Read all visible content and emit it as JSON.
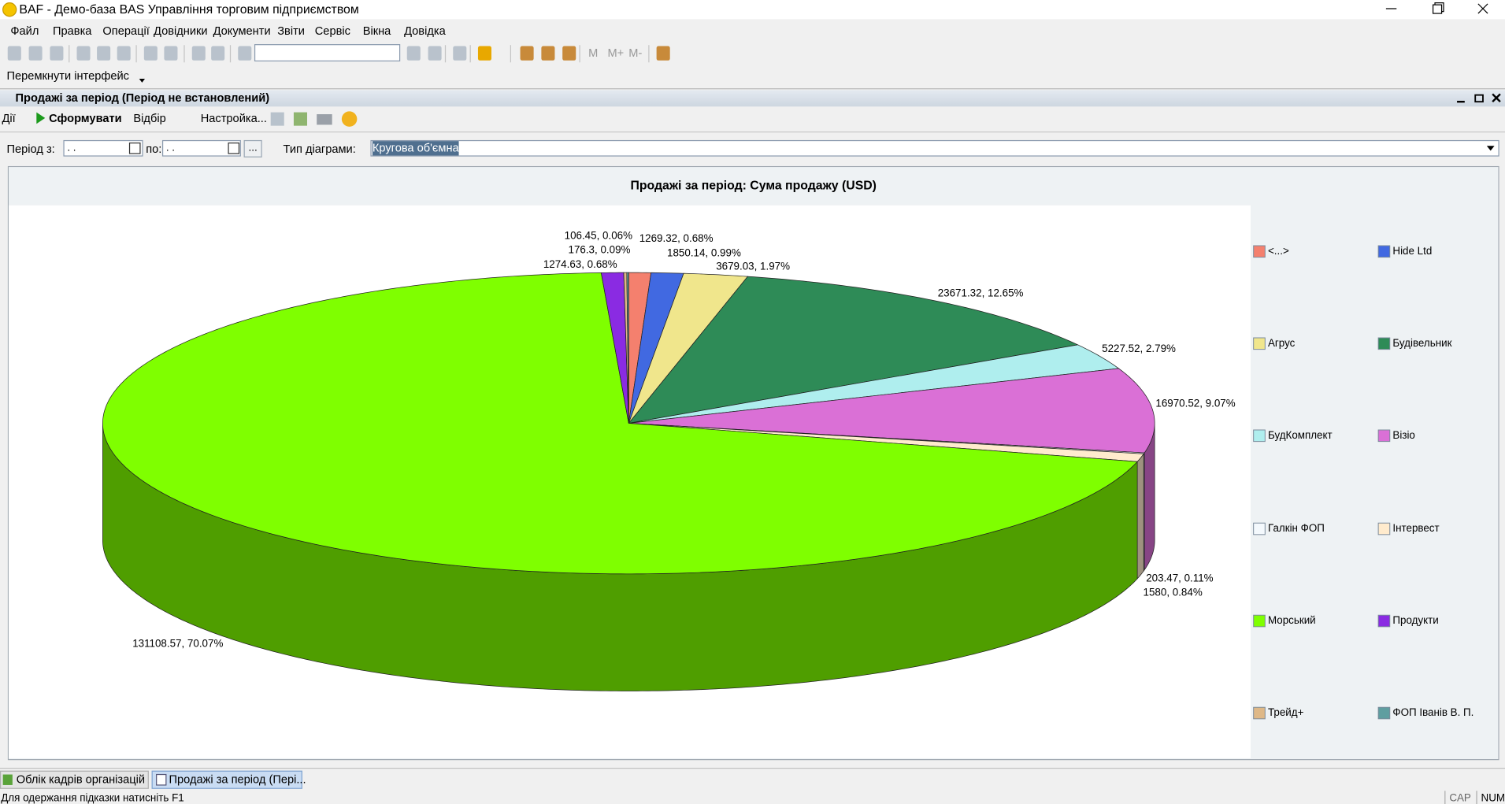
{
  "window": {
    "title": "BAF - Демо-база BAS Управління торговим підприємством"
  },
  "menu": [
    "Файл",
    "Правка",
    "Операції",
    "Довідники",
    "Документи",
    "Звіти",
    "Сервіс",
    "Вікна",
    "Довідка"
  ],
  "toolbar": {
    "memory_buttons": [
      "M",
      "M+",
      "M-"
    ]
  },
  "panel_button": "Перемкнути інтерфейс",
  "document": {
    "title": "Продажі за період (Період не встановлений)",
    "actions": [
      "Дії",
      "Сформувати",
      "Відбір",
      "Настройка..."
    ],
    "filters": {
      "period_from_label": "Період з:",
      "period_from": " .  .",
      "period_to_label": "по:",
      "period_to": " .  .",
      "select_button": "...",
      "chart_type_label": "Тип діаграми:",
      "chart_type": "Кругова об'ємна"
    }
  },
  "chart_data": {
    "type": "pie",
    "title": "Продажі за період: Сума продажу (USD)",
    "categories": [
      "<...>",
      "Hide Ltd",
      "Агрус",
      "Будівельник",
      "БудКомплект",
      "Візіо",
      "Галкін ФОП",
      "Інтервест",
      "Морський",
      "Продукти",
      "Трейд+",
      "ФОП Іванів В. П."
    ],
    "values": [
      1269.32,
      1850.14,
      3679.03,
      23671.32,
      5227.52,
      16970.52,
      203.47,
      1580,
      131108.57,
      1274.63,
      176.3,
      106.45
    ],
    "value_labels": [
      "1269.32, 0.68%",
      "1850.14, 0.99%",
      "3679.03, 1.97%",
      "23671.32, 12.65%",
      "5227.52, 2.79%",
      "16970.52, 9.07%",
      "203.47, 0.11%",
      "1580, 0.84%",
      "131108.57, 70.07%",
      "1274.63, 0.68%",
      "176.3, 0.09%",
      "106.45, 0.06%"
    ],
    "colors": [
      "#f4806e",
      "#4169e1",
      "#f0e68c",
      "#2e8b57",
      "#afeeee",
      "#da70d6",
      "#f4f9fd",
      "#ffebcd",
      "#7fff00",
      "#8a2be2",
      "#deb887",
      "#5f9ea0"
    ]
  },
  "tabs": [
    "Облік кадрів організацій",
    "Продажі за період (Пері..."
  ],
  "status": {
    "hint": "Для одержання підказки натисніть F1",
    "indicators": [
      "CAP",
      "NUM"
    ]
  }
}
